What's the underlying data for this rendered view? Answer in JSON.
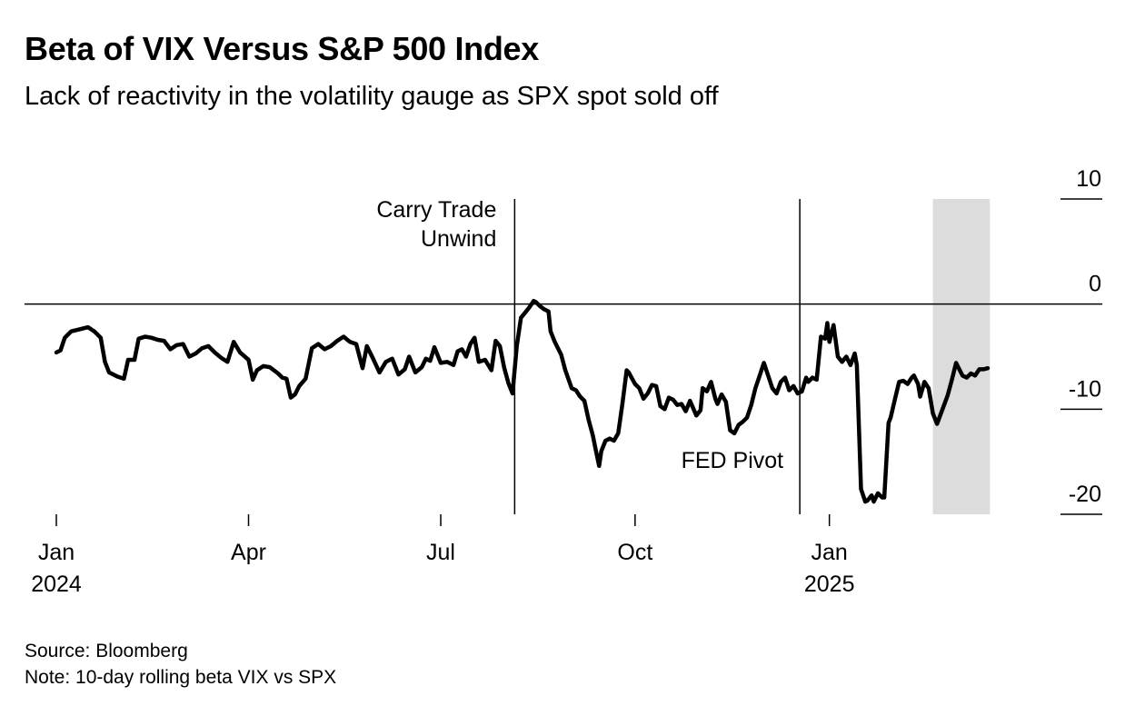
{
  "title": "Beta of VIX Versus S&P 500 Index",
  "subtitle": "Lack of reactivity in the volatility gauge as SPX spot sold off",
  "source": "Source: Bloomberg",
  "note": "Note: 10-day rolling beta VIX vs SPX",
  "colors": {
    "line": "#000000",
    "shade": "#dcdcdc",
    "text": "#000000"
  },
  "chart_data": {
    "type": "line",
    "ylim": [
      -20,
      10
    ],
    "yticks": [
      10,
      0,
      -10,
      -20
    ],
    "y_axis_position": "right",
    "xticks": [
      {
        "date": "2024-01-01",
        "label": "Jan",
        "sublabel": "2024"
      },
      {
        "date": "2024-04-01",
        "label": "Apr",
        "sublabel": ""
      },
      {
        "date": "2024-07-01",
        "label": "Jul",
        "sublabel": ""
      },
      {
        "date": "2024-10-01",
        "label": "Oct",
        "sublabel": ""
      },
      {
        "date": "2025-01-01",
        "label": "Jan",
        "sublabel": "2025"
      }
    ],
    "shaded_range": {
      "from": "2025-02-19",
      "to": "2025-03-18"
    },
    "annotations": [
      {
        "date": "2024-08-05",
        "lines": [
          "Carry Trade",
          "Unwind"
        ]
      },
      {
        "date": "2024-12-18",
        "lines": [
          "FED Pivot"
        ]
      }
    ],
    "series": [
      {
        "points": [
          [
            "2024-01-01",
            -4.6
          ],
          [
            "2024-01-03",
            -4.4
          ],
          [
            "2024-01-05",
            -3.2
          ],
          [
            "2024-01-08",
            -2.6
          ],
          [
            "2024-01-12",
            -2.4
          ],
          [
            "2024-01-16",
            -2.2
          ],
          [
            "2024-01-19",
            -2.6
          ],
          [
            "2024-01-22",
            -3.2
          ],
          [
            "2024-01-24",
            -5.5
          ],
          [
            "2024-01-26",
            -6.5
          ],
          [
            "2024-01-30",
            -6.9
          ],
          [
            "2024-02-02",
            -7.1
          ],
          [
            "2024-02-04",
            -5.3
          ],
          [
            "2024-02-07",
            -5.3
          ],
          [
            "2024-02-09",
            -3.3
          ],
          [
            "2024-02-12",
            -3.1
          ],
          [
            "2024-02-15",
            -3.2
          ],
          [
            "2024-02-18",
            -3.4
          ],
          [
            "2024-02-21",
            -3.5
          ],
          [
            "2024-02-24",
            -4.3
          ],
          [
            "2024-02-27",
            -3.9
          ],
          [
            "2024-03-01",
            -3.8
          ],
          [
            "2024-03-04",
            -5.0
          ],
          [
            "2024-03-07",
            -4.7
          ],
          [
            "2024-03-10",
            -4.2
          ],
          [
            "2024-03-13",
            -4.0
          ],
          [
            "2024-03-16",
            -4.6
          ],
          [
            "2024-03-19",
            -5.1
          ],
          [
            "2024-03-22",
            -5.5
          ],
          [
            "2024-03-25",
            -3.6
          ],
          [
            "2024-03-28",
            -4.6
          ],
          [
            "2024-04-01",
            -5.3
          ],
          [
            "2024-04-03",
            -7.2
          ],
          [
            "2024-04-05",
            -6.3
          ],
          [
            "2024-04-08",
            -5.9
          ],
          [
            "2024-04-11",
            -6.0
          ],
          [
            "2024-04-15",
            -6.6
          ],
          [
            "2024-04-17",
            -7.0
          ],
          [
            "2024-04-19",
            -7.1
          ],
          [
            "2024-04-21",
            -8.9
          ],
          [
            "2024-04-23",
            -8.6
          ],
          [
            "2024-04-25",
            -7.8
          ],
          [
            "2024-04-28",
            -7.1
          ],
          [
            "2024-05-01",
            -4.2
          ],
          [
            "2024-05-04",
            -3.8
          ],
          [
            "2024-05-07",
            -4.3
          ],
          [
            "2024-05-10",
            -4.0
          ],
          [
            "2024-05-13",
            -3.5
          ],
          [
            "2024-05-16",
            -3.1
          ],
          [
            "2024-05-19",
            -3.6
          ],
          [
            "2024-05-22",
            -3.8
          ],
          [
            "2024-05-25",
            -6.1
          ],
          [
            "2024-05-27",
            -4.0
          ],
          [
            "2024-05-30",
            -5.2
          ],
          [
            "2024-06-02",
            -6.5
          ],
          [
            "2024-06-05",
            -5.5
          ],
          [
            "2024-06-08",
            -5.2
          ],
          [
            "2024-06-11",
            -6.7
          ],
          [
            "2024-06-14",
            -6.2
          ],
          [
            "2024-06-16",
            -5.0
          ],
          [
            "2024-06-19",
            -6.5
          ],
          [
            "2024-06-22",
            -6.0
          ],
          [
            "2024-06-24",
            -5.2
          ],
          [
            "2024-06-26",
            -5.4
          ],
          [
            "2024-06-28",
            -4.1
          ],
          [
            "2024-07-01",
            -5.6
          ],
          [
            "2024-07-04",
            -5.5
          ],
          [
            "2024-07-07",
            -5.8
          ],
          [
            "2024-07-09",
            -4.5
          ],
          [
            "2024-07-11",
            -4.3
          ],
          [
            "2024-07-13",
            -5.0
          ],
          [
            "2024-07-15",
            -3.8
          ],
          [
            "2024-07-17",
            -3.2
          ],
          [
            "2024-07-19",
            -5.5
          ],
          [
            "2024-07-22",
            -5.3
          ],
          [
            "2024-07-25",
            -6.3
          ],
          [
            "2024-07-27",
            -3.5
          ],
          [
            "2024-07-29",
            -4.0
          ],
          [
            "2024-07-31",
            -6.0
          ],
          [
            "2024-08-02",
            -7.5
          ],
          [
            "2024-08-04",
            -8.5
          ],
          [
            "2024-08-06",
            -4.0
          ],
          [
            "2024-08-08",
            -1.3
          ],
          [
            "2024-08-10",
            -0.8
          ],
          [
            "2024-08-12",
            -0.3
          ],
          [
            "2024-08-14",
            0.3
          ],
          [
            "2024-08-15",
            0.2
          ],
          [
            "2024-08-17",
            -0.2
          ],
          [
            "2024-08-19",
            -0.5
          ],
          [
            "2024-08-21",
            -0.7
          ],
          [
            "2024-08-22",
            -2.6
          ],
          [
            "2024-08-24",
            -3.6
          ],
          [
            "2024-08-27",
            -4.8
          ],
          [
            "2024-08-29",
            -6.3
          ],
          [
            "2024-09-01",
            -8.0
          ],
          [
            "2024-09-03",
            -8.2
          ],
          [
            "2024-09-05",
            -8.8
          ],
          [
            "2024-09-07",
            -9.2
          ],
          [
            "2024-09-09",
            -11.0
          ],
          [
            "2024-09-11",
            -12.5
          ],
          [
            "2024-09-12",
            -13.5
          ],
          [
            "2024-09-14",
            -15.4
          ],
          [
            "2024-09-15",
            -14.0
          ],
          [
            "2024-09-17",
            -13.0
          ],
          [
            "2024-09-19",
            -12.8
          ],
          [
            "2024-09-21",
            -13.0
          ],
          [
            "2024-09-23",
            -12.3
          ],
          [
            "2024-09-25",
            -9.5
          ],
          [
            "2024-09-27",
            -6.3
          ],
          [
            "2024-09-28",
            -6.5
          ],
          [
            "2024-10-01",
            -7.6
          ],
          [
            "2024-10-03",
            -8.0
          ],
          [
            "2024-10-05",
            -9.0
          ],
          [
            "2024-10-07",
            -8.5
          ],
          [
            "2024-10-09",
            -7.7
          ],
          [
            "2024-10-11",
            -7.8
          ],
          [
            "2024-10-13",
            -9.7
          ],
          [
            "2024-10-15",
            -10.0
          ],
          [
            "2024-10-17",
            -8.9
          ],
          [
            "2024-10-19",
            -9.1
          ],
          [
            "2024-10-21",
            -9.6
          ],
          [
            "2024-10-23",
            -9.5
          ],
          [
            "2024-10-25",
            -10.2
          ],
          [
            "2024-10-27",
            -9.2
          ],
          [
            "2024-10-30",
            -10.6
          ],
          [
            "2024-11-01",
            -10.1
          ],
          [
            "2024-11-02",
            -8.0
          ],
          [
            "2024-11-04",
            -8.3
          ],
          [
            "2024-11-06",
            -7.4
          ],
          [
            "2024-11-08",
            -9.0
          ],
          [
            "2024-11-09",
            -9.5
          ],
          [
            "2024-11-11",
            -8.6
          ],
          [
            "2024-11-13",
            -9.3
          ],
          [
            "2024-11-15",
            -12.0
          ],
          [
            "2024-11-17",
            -12.3
          ],
          [
            "2024-11-19",
            -11.5
          ],
          [
            "2024-11-21",
            -11.2
          ],
          [
            "2024-11-23",
            -10.8
          ],
          [
            "2024-11-25",
            -9.6
          ],
          [
            "2024-11-27",
            -8.0
          ],
          [
            "2024-11-29",
            -6.8
          ],
          [
            "2024-12-01",
            -5.6
          ],
          [
            "2024-12-03",
            -6.8
          ],
          [
            "2024-12-05",
            -8.0
          ],
          [
            "2024-12-07",
            -8.5
          ],
          [
            "2024-12-09",
            -7.4
          ],
          [
            "2024-12-11",
            -7.0
          ],
          [
            "2024-12-13",
            -8.2
          ],
          [
            "2024-12-15",
            -7.8
          ],
          [
            "2024-12-17",
            -8.5
          ],
          [
            "2024-12-19",
            -8.3
          ],
          [
            "2024-12-21",
            -7.0
          ],
          [
            "2024-12-22",
            -7.4
          ],
          [
            "2024-12-24",
            -7.0
          ],
          [
            "2024-12-26",
            -7.2
          ],
          [
            "2024-12-28",
            -3.1
          ],
          [
            "2024-12-30",
            -3.3
          ],
          [
            "2024-12-31",
            -1.8
          ],
          [
            "2025-01-01",
            -3.6
          ],
          [
            "2025-01-03",
            -2.0
          ],
          [
            "2025-01-05",
            -5.0
          ],
          [
            "2025-01-07",
            -5.5
          ],
          [
            "2025-01-09",
            -5.0
          ],
          [
            "2025-01-11",
            -5.8
          ],
          [
            "2025-01-13",
            -4.7
          ],
          [
            "2025-01-14",
            -5.8
          ],
          [
            "2025-01-16",
            -17.6
          ],
          [
            "2025-01-18",
            -18.8
          ],
          [
            "2025-01-19",
            -18.7
          ],
          [
            "2025-01-21",
            -18.2
          ],
          [
            "2025-01-22",
            -18.8
          ],
          [
            "2025-01-24",
            -18.0
          ],
          [
            "2025-01-26",
            -18.4
          ],
          [
            "2025-01-27",
            -18.4
          ],
          [
            "2025-01-29",
            -11.3
          ],
          [
            "2025-01-30",
            -10.8
          ],
          [
            "2025-02-01",
            -9.1
          ],
          [
            "2025-02-03",
            -7.4
          ],
          [
            "2025-02-05",
            -7.3
          ],
          [
            "2025-02-07",
            -7.6
          ],
          [
            "2025-02-09",
            -7.0
          ],
          [
            "2025-02-10",
            -6.8
          ],
          [
            "2025-02-12",
            -7.6
          ],
          [
            "2025-02-13",
            -8.8
          ],
          [
            "2025-02-15",
            -7.4
          ],
          [
            "2025-02-17",
            -8.0
          ],
          [
            "2025-02-19",
            -10.4
          ],
          [
            "2025-02-21",
            -11.4
          ],
          [
            "2025-02-23",
            -10.3
          ],
          [
            "2025-02-26",
            -8.7
          ],
          [
            "2025-02-28",
            -7.2
          ],
          [
            "2025-03-02",
            -5.6
          ],
          [
            "2025-03-05",
            -6.8
          ],
          [
            "2025-03-07",
            -7.0
          ],
          [
            "2025-03-09",
            -6.6
          ],
          [
            "2025-03-11",
            -6.8
          ],
          [
            "2025-03-13",
            -6.2
          ],
          [
            "2025-03-15",
            -6.2
          ],
          [
            "2025-03-17",
            -6.1
          ]
        ]
      }
    ]
  }
}
